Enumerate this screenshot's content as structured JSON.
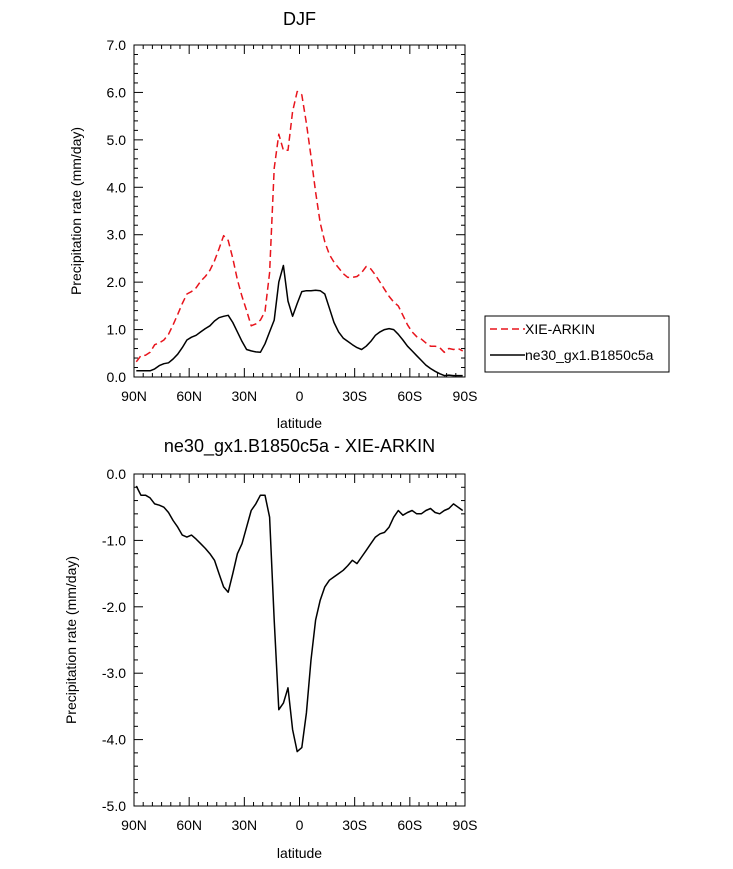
{
  "chart_data": [
    {
      "type": "line",
      "title": "DJF",
      "xlabel": "latitude",
      "ylabel": "Precipitation rate (mm/day)",
      "xlim": [
        -90,
        90
      ],
      "ylim": [
        0,
        7
      ],
      "x_ticks": [
        -90,
        -60,
        -30,
        0,
        30,
        60,
        90
      ],
      "x_tick_labels": [
        "90N",
        "60N",
        "30N",
        "0",
        "30S",
        "60S",
        "90S"
      ],
      "y_ticks": [
        0,
        1,
        2,
        3,
        4,
        5,
        6,
        7
      ],
      "y_tick_labels": [
        "0.0",
        "1.0",
        "2.0",
        "3.0",
        "4.0",
        "5.0",
        "6.0",
        "7.0"
      ],
      "legend": {
        "position": "right",
        "entries": [
          {
            "label": "XIE-ARKIN",
            "color": "#e8141c",
            "dash": "dashed"
          },
          {
            "label": "ne30_gx1.B1850c5a",
            "color": "#000000",
            "dash": "solid"
          }
        ]
      },
      "series": [
        {
          "name": "XIE-ARKIN",
          "color": "#e8141c",
          "dash": "dashed",
          "x": [
            -88.75,
            -86.25,
            -83.75,
            -81.25,
            -78.75,
            -76.25,
            -73.75,
            -71.25,
            -68.75,
            -66.25,
            -63.75,
            -61.25,
            -58.75,
            -56.25,
            -53.75,
            -51.25,
            -48.75,
            -46.25,
            -43.75,
            -41.25,
            -38.75,
            -36.25,
            -33.75,
            -31.25,
            -28.75,
            -26.25,
            -23.75,
            -21.25,
            -18.75,
            -16.25,
            -13.75,
            -11.25,
            -8.75,
            -6.25,
            -3.75,
            -1.25,
            1.25,
            3.75,
            6.25,
            8.75,
            11.25,
            13.75,
            16.25,
            18.75,
            21.25,
            23.75,
            26.25,
            28.75,
            31.25,
            33.75,
            36.25,
            38.75,
            41.25,
            43.75,
            46.25,
            48.75,
            51.25,
            53.75,
            56.25,
            58.75,
            61.25,
            63.75,
            66.25,
            68.75,
            71.25,
            73.75,
            76.25,
            78.75,
            81.25,
            83.75,
            86.25,
            88.75
          ],
          "values": [
            0.32,
            0.45,
            0.46,
            0.52,
            0.68,
            0.72,
            0.78,
            0.9,
            1.1,
            1.32,
            1.55,
            1.75,
            1.8,
            1.88,
            2.02,
            2.12,
            2.25,
            2.45,
            2.7,
            2.98,
            2.88,
            2.5,
            2.05,
            1.7,
            1.4,
            1.08,
            1.12,
            1.2,
            1.38,
            2.2,
            4.4,
            5.12,
            4.78,
            4.78,
            5.6,
            6.02,
            5.95,
            5.35,
            4.65,
            3.9,
            3.25,
            2.85,
            2.58,
            2.42,
            2.3,
            2.18,
            2.1,
            2.1,
            2.12,
            2.2,
            2.33,
            2.28,
            2.15,
            2.0,
            1.85,
            1.7,
            1.58,
            1.5,
            1.3,
            1.1,
            0.95,
            0.85,
            0.8,
            0.72,
            0.65,
            0.65,
            0.62,
            0.52,
            0.6,
            0.58,
            0.6,
            0.55
          ]
        },
        {
          "name": "ne30_gx1.B1850c5a",
          "color": "#000000",
          "dash": "solid",
          "x": [
            -88.75,
            -86.25,
            -83.75,
            -81.25,
            -78.75,
            -76.25,
            -73.75,
            -71.25,
            -68.75,
            -66.25,
            -63.75,
            -61.25,
            -58.75,
            -56.25,
            -53.75,
            -51.25,
            -48.75,
            -46.25,
            -43.75,
            -41.25,
            -38.75,
            -36.25,
            -33.75,
            -31.25,
            -28.75,
            -26.25,
            -23.75,
            -21.25,
            -18.75,
            -16.25,
            -13.75,
            -11.25,
            -8.75,
            -6.25,
            -3.75,
            -1.25,
            1.25,
            3.75,
            6.25,
            8.75,
            11.25,
            13.75,
            16.25,
            18.75,
            21.25,
            23.75,
            26.25,
            28.75,
            31.25,
            33.75,
            36.25,
            38.75,
            41.25,
            43.75,
            46.25,
            48.75,
            51.25,
            53.75,
            56.25,
            58.75,
            61.25,
            63.75,
            66.25,
            68.75,
            71.25,
            73.75,
            76.25,
            78.75,
            81.25,
            83.75,
            86.25,
            88.75
          ],
          "values": [
            0.13,
            0.13,
            0.13,
            0.13,
            0.17,
            0.24,
            0.28,
            0.3,
            0.38,
            0.48,
            0.62,
            0.78,
            0.84,
            0.88,
            0.95,
            1.02,
            1.08,
            1.18,
            1.25,
            1.28,
            1.3,
            1.15,
            0.95,
            0.75,
            0.58,
            0.55,
            0.53,
            0.52,
            0.7,
            0.95,
            1.2,
            2.0,
            2.35,
            1.6,
            1.28,
            1.55,
            1.8,
            1.82,
            1.82,
            1.83,
            1.82,
            1.75,
            1.45,
            1.15,
            0.95,
            0.82,
            0.75,
            0.68,
            0.62,
            0.58,
            0.65,
            0.75,
            0.88,
            0.95,
            1.0,
            1.02,
            1.0,
            0.9,
            0.78,
            0.65,
            0.55,
            0.45,
            0.35,
            0.25,
            0.18,
            0.12,
            0.07,
            0.03,
            0.04,
            0.03,
            0.03,
            0.03
          ]
        }
      ]
    },
    {
      "type": "line",
      "title": "ne30_gx1.B1850c5a - XIE-ARKIN",
      "xlabel": "latitude",
      "ylabel": "Precipitation rate (mm/day)",
      "xlim": [
        -90,
        90
      ],
      "ylim": [
        -5,
        0
      ],
      "x_ticks": [
        -90,
        -60,
        -30,
        0,
        30,
        60,
        90
      ],
      "x_tick_labels": [
        "90N",
        "60N",
        "30N",
        "0",
        "30S",
        "60S",
        "90S"
      ],
      "y_ticks": [
        -5,
        -4,
        -3,
        -2,
        -1,
        0
      ],
      "y_tick_labels": [
        "-5.0",
        "-4.0",
        "-3.0",
        "-2.0",
        "-1.0",
        "0.0"
      ],
      "series": [
        {
          "name": "ne30_gx1.B1850c5a - XIE-ARKIN",
          "color": "#000000",
          "dash": "solid",
          "x": [
            -88.75,
            -86.25,
            -83.75,
            -81.25,
            -78.75,
            -76.25,
            -73.75,
            -71.25,
            -68.75,
            -66.25,
            -63.75,
            -61.25,
            -58.75,
            -56.25,
            -53.75,
            -51.25,
            -48.75,
            -46.25,
            -43.75,
            -41.25,
            -38.75,
            -36.25,
            -33.75,
            -31.25,
            -28.75,
            -26.25,
            -23.75,
            -21.25,
            -18.75,
            -16.25,
            -13.75,
            -11.25,
            -8.75,
            -6.25,
            -3.75,
            -1.25,
            1.25,
            3.75,
            6.25,
            8.75,
            11.25,
            13.75,
            16.25,
            18.75,
            21.25,
            23.75,
            26.25,
            28.75,
            31.25,
            33.75,
            36.25,
            38.75,
            41.25,
            43.75,
            46.25,
            48.75,
            51.25,
            53.75,
            56.25,
            58.75,
            61.25,
            63.75,
            66.25,
            68.75,
            71.25,
            73.75,
            76.25,
            78.75,
            81.25,
            83.75,
            86.25,
            88.75
          ],
          "values": [
            -0.18,
            -0.32,
            -0.32,
            -0.36,
            -0.45,
            -0.47,
            -0.5,
            -0.58,
            -0.7,
            -0.8,
            -0.92,
            -0.95,
            -0.92,
            -0.98,
            -1.05,
            -1.12,
            -1.2,
            -1.3,
            -1.5,
            -1.7,
            -1.78,
            -1.5,
            -1.2,
            -1.05,
            -0.8,
            -0.55,
            -0.45,
            -0.32,
            -0.32,
            -0.65,
            -2.2,
            -3.55,
            -3.45,
            -3.22,
            -3.85,
            -4.18,
            -4.12,
            -3.6,
            -2.8,
            -2.2,
            -1.9,
            -1.7,
            -1.6,
            -1.55,
            -1.5,
            -1.45,
            -1.38,
            -1.3,
            -1.35,
            -1.25,
            -1.15,
            -1.05,
            -0.95,
            -0.9,
            -0.88,
            -0.8,
            -0.65,
            -0.55,
            -0.62,
            -0.58,
            -0.55,
            -0.6,
            -0.6,
            -0.55,
            -0.52,
            -0.58,
            -0.6,
            -0.55,
            -0.52,
            -0.45,
            -0.5,
            -0.55
          ]
        }
      ]
    }
  ]
}
